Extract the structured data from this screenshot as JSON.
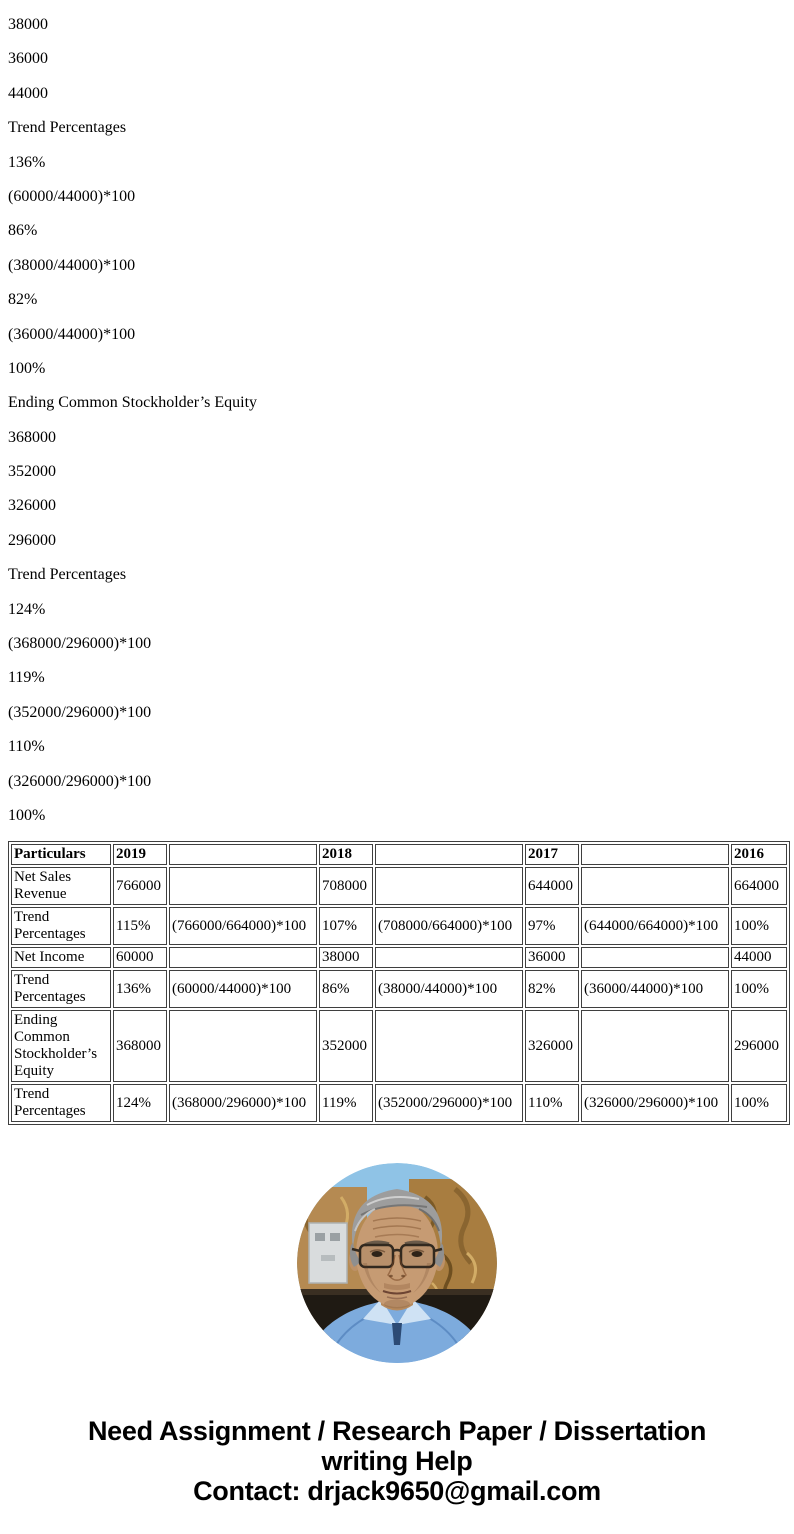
{
  "document": {
    "paragraphs": [
      "38000",
      "36000",
      "44000",
      "Trend Percentages",
      "136%",
      "(60000/44000)*100",
      "86%",
      "(38000/44000)*100",
      "82%",
      "(36000/44000)*100",
      "100%",
      "Ending Common Stockholder’s Equity",
      "368000",
      "352000",
      "326000",
      "296000",
      "Trend Percentages",
      "124%",
      "(368000/296000)*100",
      "119%",
      "(352000/296000)*100",
      "110%",
      "(326000/296000)*100",
      "100%"
    ],
    "table": {
      "header": [
        "Particulars",
        "2019",
        "",
        "2018",
        "",
        "2017",
        "",
        "2016"
      ],
      "rows": [
        [
          "Net Sales Revenue",
          "766000",
          "",
          "708000",
          "",
          "644000",
          "",
          "664000"
        ],
        [
          "Trend Percentages",
          "115%",
          "(766000/664000)*100",
          "107%",
          "(708000/664000)*100",
          "97%",
          "(644000/664000)*100",
          "100%"
        ],
        [
          "Net Income",
          "60000",
          "",
          "38000",
          "",
          "36000",
          "",
          "44000"
        ],
        [
          "Trend Percentages",
          "136%",
          "(60000/44000)*100",
          "86%",
          "(38000/44000)*100",
          "82%",
          "(36000/44000)*100",
          "100%"
        ],
        [
          "Ending Common Stockholder’s Equity",
          "368000",
          "",
          "352000",
          "",
          "326000",
          "",
          "296000"
        ],
        [
          "Trend Percentages",
          "124%",
          "(368000/296000)*100",
          "119%",
          "(352000/296000)*100",
          "110%",
          "(326000/296000)*100",
          "100%"
        ]
      ]
    },
    "photo": {
      "icon": "portrait-photo"
    },
    "footer": {
      "heading_line1": "Need Assignment / Research Paper / Dissertation",
      "heading_line2": "writing Help",
      "contact_line": "Contact: drjack9650@gmail.com"
    },
    "colors": {
      "table_border": "#3f3f3f",
      "text": "#000000",
      "background": "#ffffff"
    }
  }
}
